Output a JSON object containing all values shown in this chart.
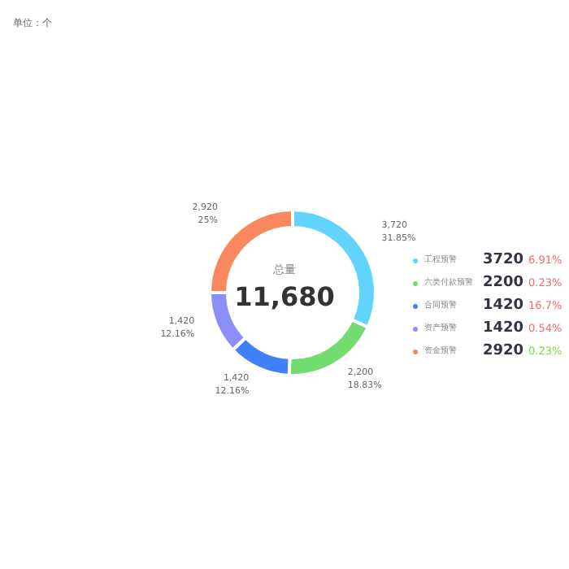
{
  "chart_data": {
    "type": "donut",
    "categories": [
      "工程预警",
      "六类付款预警",
      "合同预警",
      "资产预警",
      "资金预警"
    ],
    "values": [
      3720,
      2200,
      1420,
      1420,
      2920
    ],
    "colors": [
      "#62d4fb",
      "#72dc6e",
      "#4080f8",
      "#8a8ef6",
      "#f9885e"
    ],
    "value_labels": [
      "3,720\n31.85%",
      "2,200\n18.83%",
      "1,420\n12.16%",
      "1,420\n12.16%",
      "2,920\n25%"
    ],
    "legend": "right",
    "annotations": [
      "单位：个",
      "总量",
      "11,680",
      "6.91%",
      "0.23%",
      "16.7%",
      "0.54%",
      "0.23%",
      "3720",
      "2200",
      "1420",
      "1420",
      "2920"
    ]
  }
}
